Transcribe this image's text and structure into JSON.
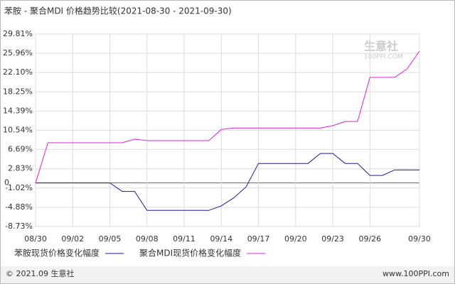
{
  "chart_data": {
    "type": "line",
    "title": "苯胺 - 聚合MDI 价格趋势比较(2021-08-30 - 2021-09-30)",
    "watermark": [
      "生意社",
      "100PPI.COM"
    ],
    "footer_left": "© 2021.09 生意社",
    "footer_right": "www.100PPI.com",
    "categories": [
      "08/30",
      null,
      null,
      "09/02",
      null,
      null,
      "09/05",
      null,
      null,
      "09/08",
      null,
      null,
      "09/11",
      null,
      null,
      "09/14",
      null,
      null,
      "09/17",
      null,
      null,
      "09/20",
      null,
      null,
      "09/23",
      null,
      null,
      "09/26",
      null,
      null,
      null,
      "09/30"
    ],
    "series": [
      {
        "name": "苯胺现货价格变化幅度",
        "color": "#1a1aa6",
        "values": [
          0,
          0,
          0,
          0,
          0,
          0,
          0,
          -1.7,
          -1.7,
          -5.5,
          -5.5,
          -5.5,
          -5.5,
          -5.5,
          -5.5,
          -4.6,
          -3.0,
          -0.8,
          3.9,
          3.9,
          3.9,
          3.9,
          3.9,
          5.9,
          5.9,
          3.9,
          3.9,
          1.5,
          1.5,
          2.6,
          2.6,
          2.6
        ]
      },
      {
        "name": "聚合MDI现货价格变化幅度",
        "color": "#e020e0",
        "values": [
          0,
          8.05,
          8.05,
          8.05,
          8.05,
          8.05,
          8.05,
          8.05,
          8.76,
          8.47,
          8.47,
          8.47,
          8.47,
          8.47,
          8.47,
          10.7,
          11.0,
          11.0,
          11.0,
          11.0,
          11.0,
          11.0,
          11.0,
          11.0,
          11.46,
          12.3,
          12.3,
          21.13,
          21.13,
          21.13,
          22.84,
          26.4
        ]
      }
    ],
    "ylim": [
      -8.73,
      29.81
    ],
    "yticks": [
      {
        "value": 29.81,
        "label": "29.81%"
      },
      {
        "value": 25.96,
        "label": "25.96%"
      },
      {
        "value": 22.1,
        "label": "22.10%"
      },
      {
        "value": 18.25,
        "label": "18.25%"
      },
      {
        "value": 14.39,
        "label": "14.39%"
      },
      {
        "value": 10.54,
        "label": "10.54%"
      },
      {
        "value": 6.69,
        "label": "6.69%"
      },
      {
        "value": 2.83,
        "label": "2.83%"
      },
      {
        "value": -1.02,
        "label": "-1.02%"
      },
      {
        "value": -4.88,
        "label": "-4.88%"
      },
      {
        "value": -8.73,
        "label": "-8.73%"
      },
      0
    ],
    "grid": true
  }
}
